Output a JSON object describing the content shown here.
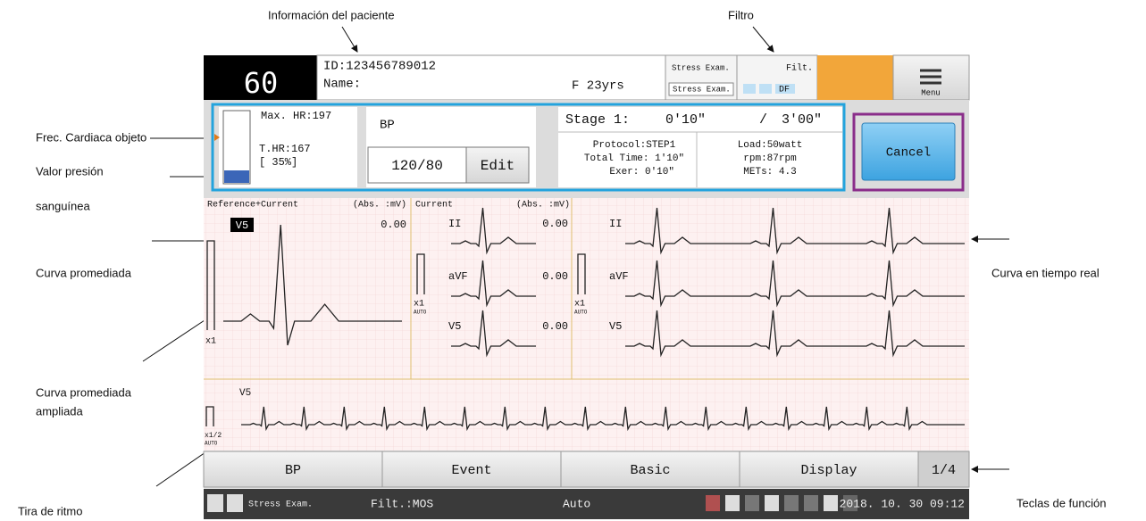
{
  "annotations": {
    "patient_info": "Información del paciente",
    "filter": "Filtro",
    "target_hr": "Frec. Cardiaca objeto",
    "bp_value": [
      "Valor presión",
      "sanguínea"
    ],
    "averaged_curve": "Curva promediada",
    "enlarged_curve": [
      "Curva promediada",
      "ampliada"
    ],
    "rhythm_strip": "Tira de ritmo",
    "realtime_curve": "Curva en tiempo real",
    "function_keys": "Teclas de función"
  },
  "header": {
    "hr": "60",
    "id": "ID:123456789012",
    "name": "Name:",
    "sex_age": "F  23yrs",
    "exam_top": "Stress Exam.",
    "exam_bottom": "Stress Exam.",
    "filter_label": "Filt.",
    "filter_mode": "DF",
    "menu": "Menu"
  },
  "hr_panel": {
    "max": "Max. HR:197",
    "target": "T.HR:167",
    "percent": "[ 35%]"
  },
  "bp_panel": {
    "title": "BP",
    "value": "120/80",
    "edit": "Edit"
  },
  "stage_panel": {
    "stage": "Stage 1:",
    "elapsed": "0'10\"",
    "separator": "/",
    "duration": "3'00\"",
    "protocol": "Protocol:STEP1",
    "total_time": "Total Time: 1'10\"",
    "exer": "Exer: 0'10\"",
    "load": "Load:50watt",
    "rpm": "rpm:87rpm",
    "mets": "METs: 4.3"
  },
  "cancel": "Cancel",
  "waveforms": {
    "ref_title": "Reference+Current",
    "ref_units": "(Abs. :mV)",
    "ref_lead": "V5",
    "ref_value": "0.00",
    "ref_gain": "x1",
    "cur_title": "Current",
    "cur_units": "(Abs. :mV)",
    "cur_leads": [
      {
        "lead": "II",
        "value": "0.00"
      },
      {
        "lead": "aVF",
        "value": "0.00"
      },
      {
        "lead": "V5",
        "value": "0.00"
      }
    ],
    "cur_gain": "x1",
    "cur_auto": "AUTO",
    "rt_leads": [
      "II",
      "aVF",
      "V5"
    ],
    "rt_gain": "x1",
    "rt_auto": "AUTO"
  },
  "rhythm": {
    "lead": "V5",
    "gain": "x1/2",
    "auto": "AUTO"
  },
  "function_keys": [
    "BP",
    "Event",
    "Basic",
    "Display",
    "1/4"
  ],
  "status": {
    "exam": "Stress Exam.",
    "filter": "Filt.:MOS",
    "mode": "Auto",
    "datetime": "2018. 10. 30 09:12"
  }
}
